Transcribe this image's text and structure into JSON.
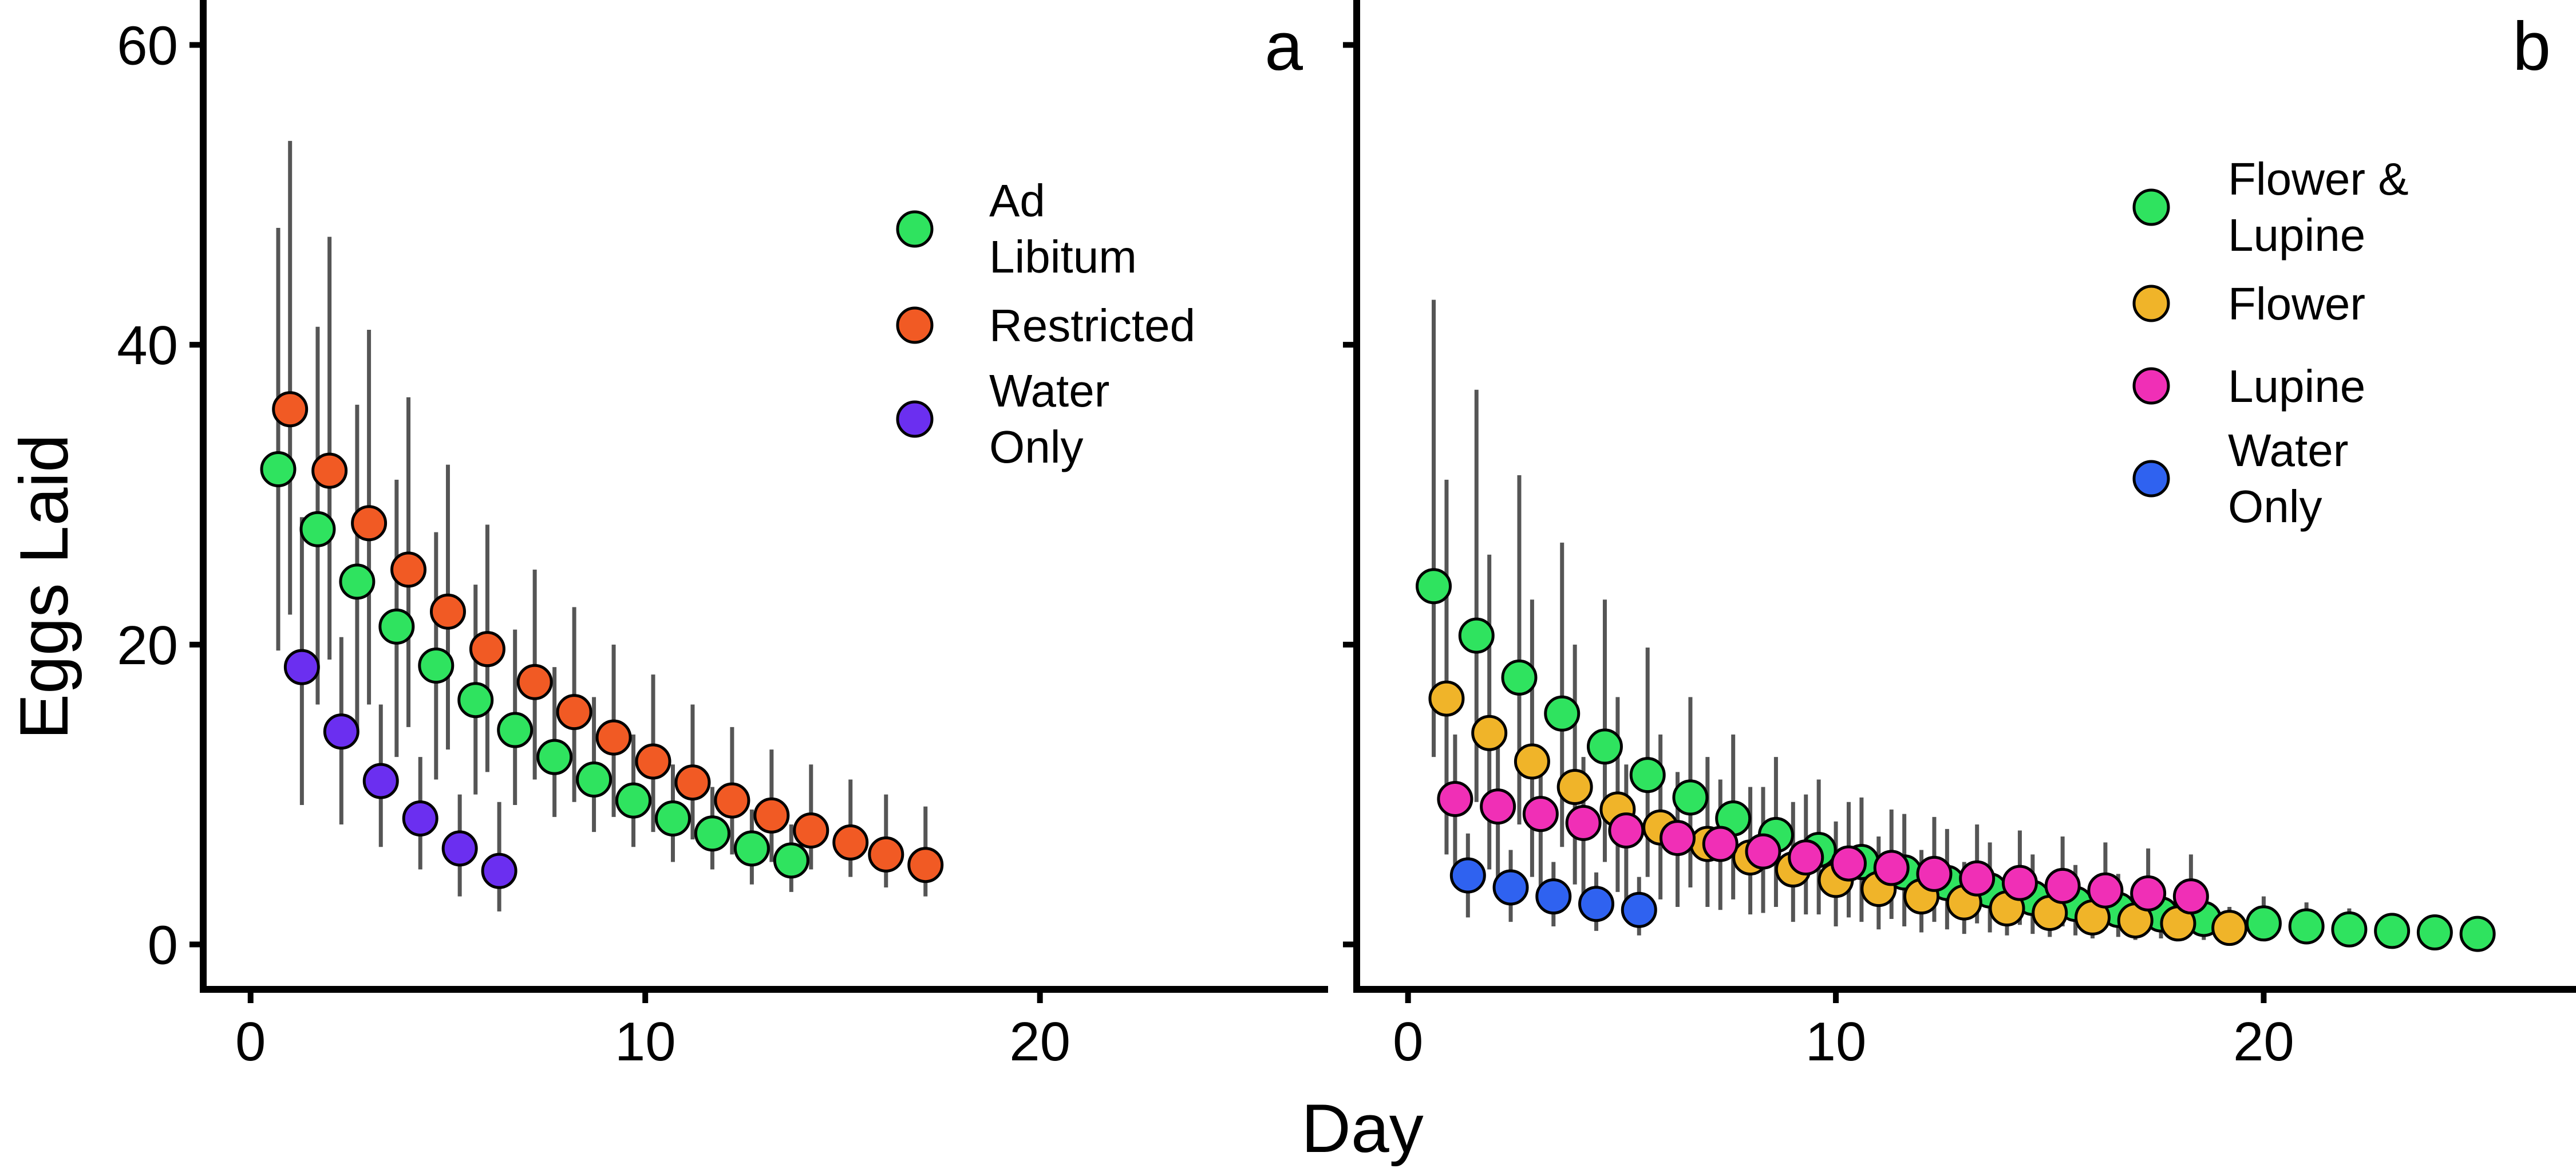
{
  "figure": {
    "ylabel": "Eggs Laid",
    "xlabel": "Day"
  },
  "chart_data": [
    {
      "type": "scatter",
      "panel_label": "a",
      "xlabel": "Day",
      "ylabel": "Eggs Laid",
      "xlim": [
        -1.2,
        27.3
      ],
      "ylim": [
        -3,
        63
      ],
      "x_ticks": [
        0,
        10,
        20
      ],
      "y_ticks": [
        0,
        20,
        40,
        60
      ],
      "grid": false,
      "legend_position": "top-right",
      "error_bars": true,
      "series": [
        {
          "name": "Ad Libitum",
          "color": "#2fe35f",
          "x": [
            0.7,
            1.7,
            2.7,
            3.7,
            4.7,
            5.7,
            6.7,
            7.7,
            8.7,
            9.7,
            10.7,
            11.7,
            12.7,
            13.7
          ],
          "y": [
            31.7,
            27.7,
            24.2,
            21.2,
            18.6,
            16.3,
            14.3,
            12.5,
            11,
            9.6,
            8.4,
            7.4,
            6.4,
            5.6
          ],
          "err_low": [
            19.6,
            16,
            14,
            12.5,
            11,
            10,
            9.3,
            8.5,
            7.5,
            6.5,
            5.5,
            5,
            4,
            3.5
          ],
          "err_high": [
            47.8,
            41.2,
            36,
            31,
            27.5,
            24,
            21,
            18.5,
            16.5,
            14,
            12,
            10.5,
            9,
            8
          ]
        },
        {
          "name": "Restricted",
          "color": "#f15a24",
          "x": [
            1,
            2,
            3,
            4,
            5,
            6,
            7.2,
            8.2,
            9.2,
            10.2,
            11.2,
            12.2,
            13.2,
            14.2,
            15.2,
            16.1,
            17.1
          ],
          "y": [
            35.7,
            31.6,
            28.1,
            25,
            22.2,
            19.7,
            17.5,
            15.5,
            13.8,
            12.2,
            10.8,
            9.6,
            8.6,
            7.6,
            6.8,
            6,
            5.3
          ],
          "err_low": [
            22,
            19,
            16,
            14.5,
            13,
            11.5,
            11,
            9.5,
            8.5,
            7.5,
            7,
            6,
            5.5,
            5,
            4.5,
            3.8,
            3.2
          ],
          "err_high": [
            53.6,
            47.2,
            41,
            36.5,
            32,
            28,
            25,
            22.5,
            20,
            18,
            16,
            14.5,
            13,
            12,
            11,
            10,
            9.2
          ]
        },
        {
          "name": "Water Only",
          "color": "#6b2ff0",
          "x": [
            1.3,
            2.3,
            3.3,
            4.3,
            5.3,
            6.3
          ],
          "y": [
            18.5,
            14.2,
            10.9,
            8.4,
            6.4,
            4.9
          ],
          "err_low": [
            9.3,
            8,
            6.5,
            5,
            3.2,
            2.2
          ],
          "err_high": [
            28.5,
            20.5,
            16,
            12.5,
            10,
            9.5
          ]
        }
      ]
    },
    {
      "type": "scatter",
      "panel_label": "b",
      "xlabel": "Day",
      "ylabel": "Eggs Laid",
      "xlim": [
        -1.2,
        27.3
      ],
      "ylim": [
        -3,
        63
      ],
      "x_ticks": [
        0,
        10,
        20
      ],
      "y_ticks": [
        0,
        20,
        40,
        60
      ],
      "grid": false,
      "legend_position": "top-right",
      "error_bars": true,
      "series": [
        {
          "name": "Flower & Lupine",
          "color": "#2fe35f",
          "x": [
            0.6,
            1.6,
            2.6,
            3.6,
            4.6,
            5.6,
            6.6,
            7.6,
            8.6,
            9.6,
            10.6,
            11.6,
            12.6,
            13.6,
            14.6,
            15.6,
            16.6,
            17.6,
            18.6,
            20,
            21,
            22,
            23,
            24,
            25
          ],
          "y": [
            23.9,
            20.6,
            17.8,
            15.4,
            13.2,
            11.3,
            9.8,
            8.4,
            7.3,
            6.3,
            5.5,
            4.8,
            4.1,
            3.6,
            3.1,
            2.7,
            2.3,
            2,
            1.7,
            1.4,
            1.2,
            1,
            0.9,
            0.8,
            0.7
          ],
          "err_low": [
            12.5,
            9.5,
            8,
            6.5,
            5.5,
            4.5,
            3.8,
            3,
            2.5,
            2,
            1.5,
            1.2,
            1,
            0.8,
            0.7,
            0.6,
            0.5,
            0.4,
            0.3,
            0.3,
            0.2,
            0.2,
            0.2,
            0.2,
            0.2
          ],
          "err_high": [
            43,
            37,
            31.3,
            26.8,
            23,
            19.8,
            16.5,
            14,
            12.5,
            11,
            9.8,
            8.7,
            7.7,
            6.8,
            6,
            5.3,
            4.7,
            4.1,
            3.6,
            3.2,
            2.8,
            2.4,
            2.1,
            1.8,
            1.6
          ]
        },
        {
          "name": "Flower",
          "color": "#f0b429",
          "x": [
            0.9,
            1.9,
            2.9,
            3.9,
            4.9,
            5.9,
            7,
            8,
            9,
            10,
            11,
            12,
            13,
            14,
            15,
            16,
            17,
            18,
            19.2
          ],
          "y": [
            16.4,
            14.1,
            12.2,
            10.5,
            9,
            7.8,
            6.7,
            5.8,
            5,
            4.3,
            3.7,
            3.2,
            2.8,
            2.4,
            2.1,
            1.8,
            1.6,
            1.4,
            1.1
          ],
          "err_low": [
            6,
            5,
            4.5,
            4,
            3.5,
            3,
            2.5,
            2,
            1.5,
            1.2,
            1,
            0.8,
            0.7,
            0.6,
            0.5,
            0.4,
            0.3,
            0.3,
            0.2
          ],
          "err_high": [
            31,
            26,
            23,
            20,
            16.5,
            14,
            12.5,
            10.5,
            9.5,
            8.2,
            7.2,
            6.3,
            5.5,
            4.8,
            4.2,
            3.7,
            3.3,
            2.9,
            2.5
          ]
        },
        {
          "name": "Lupine",
          "color": "#f02fb6",
          "x": [
            1.1,
            2.1,
            3.1,
            4.1,
            5.1,
            6.3,
            7.3,
            8.3,
            9.3,
            10.3,
            11.3,
            12.3,
            13.3,
            14.3,
            15.3,
            16.3,
            17.3,
            18.3
          ],
          "y": [
            9.7,
            9.2,
            8.7,
            8.1,
            7.6,
            7.1,
            6.7,
            6.2,
            5.8,
            5.4,
            5.1,
            4.7,
            4.4,
            4.1,
            3.9,
            3.6,
            3.4,
            3.2
          ],
          "err_low": [
            4.5,
            4,
            3.5,
            3,
            2.8,
            2.5,
            2.3,
            2.1,
            2,
            1.8,
            1.7,
            1.5,
            1.4,
            1.3,
            1.2,
            1.1,
            1,
            0.9
          ],
          "err_high": [
            14,
            13.5,
            13,
            12.5,
            12,
            11.5,
            11,
            10.5,
            10,
            9.5,
            9,
            8.5,
            8,
            7.6,
            7.2,
            6.8,
            6.4,
            6
          ]
        },
        {
          "name": "Water Only",
          "color": "#2f62f0",
          "x": [
            1.4,
            2.4,
            3.4,
            4.4,
            5.4
          ],
          "y": [
            4.6,
            3.8,
            3.2,
            2.7,
            2.3
          ],
          "err_low": [
            1.8,
            1.5,
            1.2,
            0.9,
            0.6
          ],
          "err_high": [
            7.4,
            6.3,
            5.5,
            4.8,
            4.5
          ]
        }
      ]
    }
  ]
}
